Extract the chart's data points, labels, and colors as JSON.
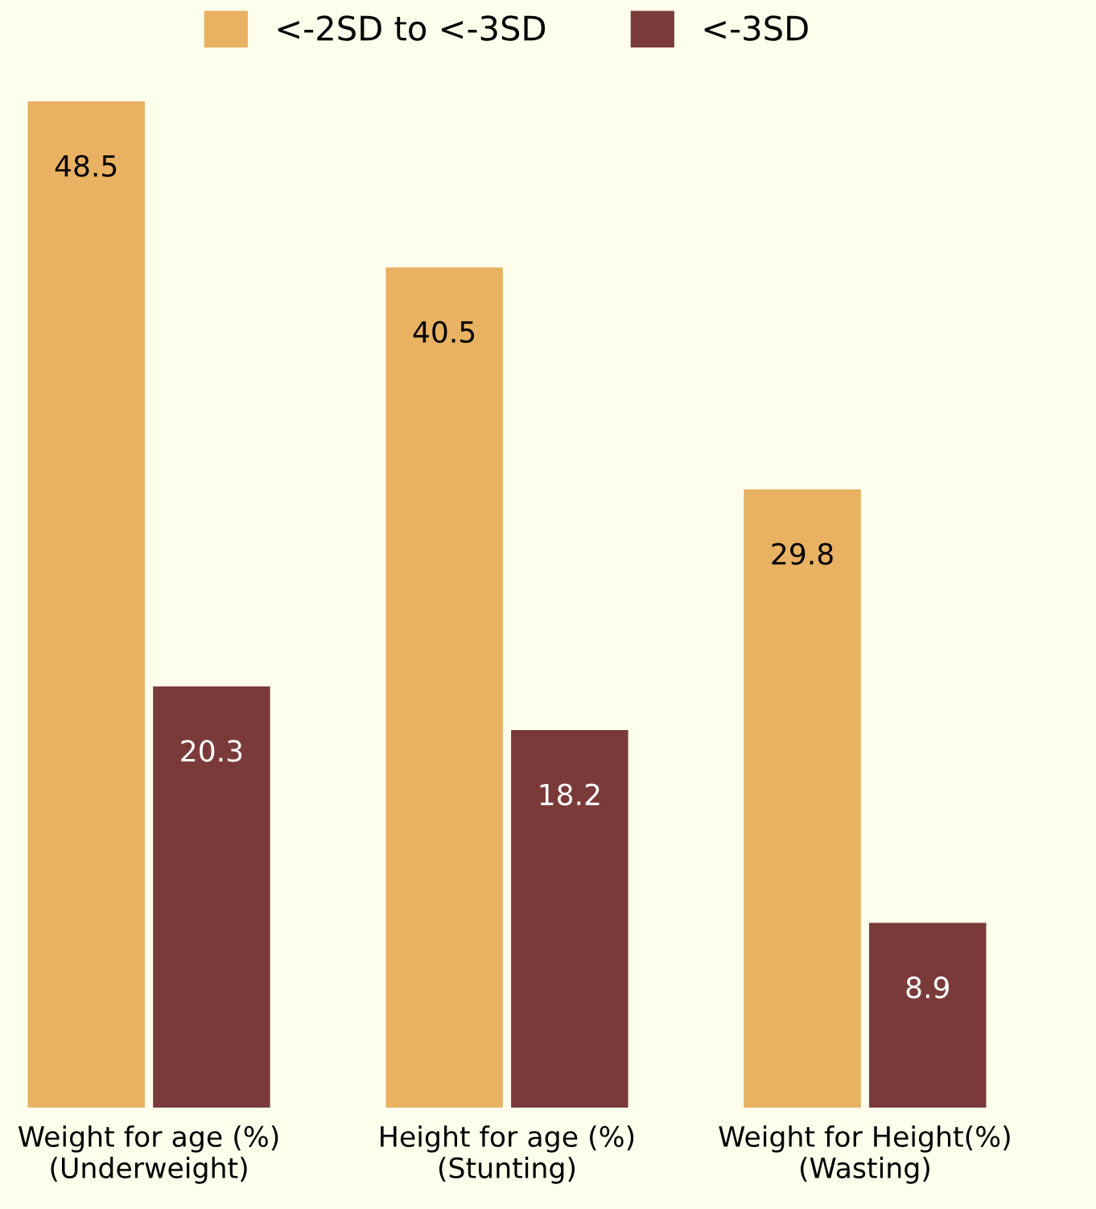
{
  "chart_data": {
    "type": "bar",
    "categories": [
      "Weight for age (%)\n(Underweight)",
      "Height for age (%)\n(Stunting)",
      "Weight for Height(%)\n(Wasting)"
    ],
    "series": [
      {
        "name": "<-2SD to <-3SD",
        "color": "#e8b262",
        "values": [
          48.5,
          40.5,
          29.8
        ]
      },
      {
        "name": "<-3SD",
        "color": "#7b3a3a",
        "values": [
          20.3,
          18.2,
          8.9
        ]
      }
    ],
    "data_labels": true,
    "legend": "top",
    "grid": false
  }
}
